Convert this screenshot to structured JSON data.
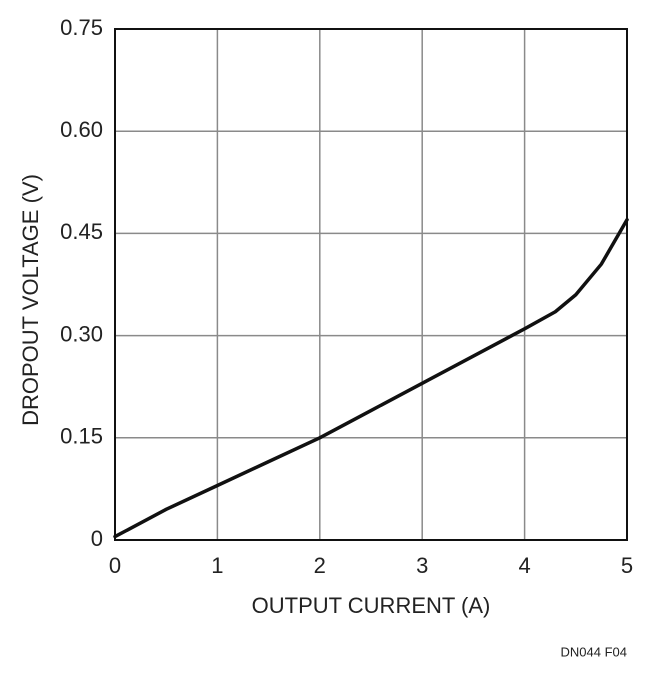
{
  "chart_data": {
    "type": "line",
    "x_label": "OUTPUT CURRENT (A)",
    "y_label": "DROPOUT VOLTAGE (V)",
    "note": "DN044 F04",
    "x": [
      0,
      0.5,
      1,
      1.5,
      2,
      2.5,
      3,
      3.5,
      4,
      4.3,
      4.5,
      4.75,
      5
    ],
    "series": [
      {
        "color": "#111111",
        "values": [
          0.005,
          0.045,
          0.08,
          0.115,
          0.15,
          0.19,
          0.23,
          0.27,
          0.31,
          0.335,
          0.36,
          0.405,
          0.47
        ]
      }
    ],
    "xlim": [
      0,
      5
    ],
    "xticks": [
      0,
      1,
      2,
      3,
      4,
      5
    ],
    "ylim": [
      0,
      0.75
    ],
    "yticks": [
      0,
      0.15,
      {
        "value": 0.3,
        "label": "0.30"
      },
      0.45,
      {
        "value": 0.6,
        "label": "0.60"
      },
      0.75
    ],
    "grid": true
  }
}
